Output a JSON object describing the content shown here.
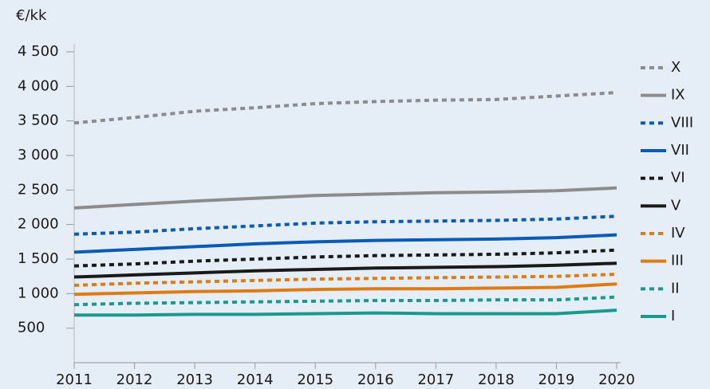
{
  "chart_data": {
    "type": "line",
    "y_label": "€/kk",
    "x": [
      2011,
      2012,
      2013,
      2014,
      2015,
      2016,
      2017,
      2018,
      2019,
      2020
    ],
    "xlim": [
      2011,
      2020
    ],
    "xticks": [
      2011,
      2012,
      2013,
      2014,
      2015,
      2016,
      2017,
      2018,
      2019,
      2020
    ],
    "ylim": [
      0,
      4500
    ],
    "yticks": [
      500,
      {
        "value": 1000,
        "label": "1 000"
      },
      {
        "value": 1500,
        "label": "1 500"
      },
      {
        "value": 2000,
        "label": "2 000"
      },
      {
        "value": 2500,
        "label": "2 500"
      },
      {
        "value": 3000,
        "label": "3 000"
      },
      {
        "value": 3500,
        "label": "3 500"
      },
      {
        "value": 4000,
        "label": "4 000"
      },
      {
        "value": 4500,
        "label": "4 500"
      }
    ],
    "legend": "right",
    "series": [
      {
        "name": "X",
        "color": "#8c8c8c",
        "style": "dotted",
        "values": [
          3470,
          3550,
          3640,
          3690,
          3750,
          3780,
          3800,
          3810,
          3860,
          3910
        ]
      },
      {
        "name": "IX",
        "color": "#8c8c8c",
        "style": "solid",
        "values": [
          2240,
          2290,
          2340,
          2380,
          2420,
          2440,
          2460,
          2470,
          2490,
          2530
        ]
      },
      {
        "name": "VIII",
        "color": "#0a5bb5",
        "style": "dotted",
        "values": [
          1860,
          1890,
          1940,
          1980,
          2020,
          2040,
          2050,
          2060,
          2080,
          2120
        ]
      },
      {
        "name": "VII",
        "color": "#0a5bb5",
        "style": "solid",
        "values": [
          1600,
          1640,
          1680,
          1720,
          1750,
          1770,
          1780,
          1790,
          1810,
          1850
        ]
      },
      {
        "name": "VI",
        "color": "#1a1a1a",
        "style": "dotted",
        "values": [
          1400,
          1430,
          1470,
          1500,
          1530,
          1550,
          1560,
          1570,
          1590,
          1630
        ]
      },
      {
        "name": "V",
        "color": "#1a1a1a",
        "style": "solid",
        "values": [
          1240,
          1270,
          1300,
          1330,
          1350,
          1370,
          1380,
          1390,
          1410,
          1440
        ]
      },
      {
        "name": "IV",
        "color": "#e07b14",
        "style": "dotted",
        "values": [
          1120,
          1150,
          1170,
          1190,
          1210,
          1220,
          1230,
          1240,
          1250,
          1280
        ]
      },
      {
        "name": "III",
        "color": "#e07b14",
        "style": "solid",
        "values": [
          990,
          1010,
          1030,
          1040,
          1060,
          1070,
          1070,
          1080,
          1090,
          1140
        ]
      },
      {
        "name": "II",
        "color": "#1a9a8c",
        "style": "dotted",
        "values": [
          840,
          860,
          870,
          880,
          890,
          900,
          900,
          910,
          910,
          950
        ]
      },
      {
        "name": "I",
        "color": "#1a9a8c",
        "style": "solid",
        "values": [
          690,
          690,
          700,
          700,
          710,
          720,
          710,
          710,
          710,
          760
        ]
      }
    ]
  }
}
